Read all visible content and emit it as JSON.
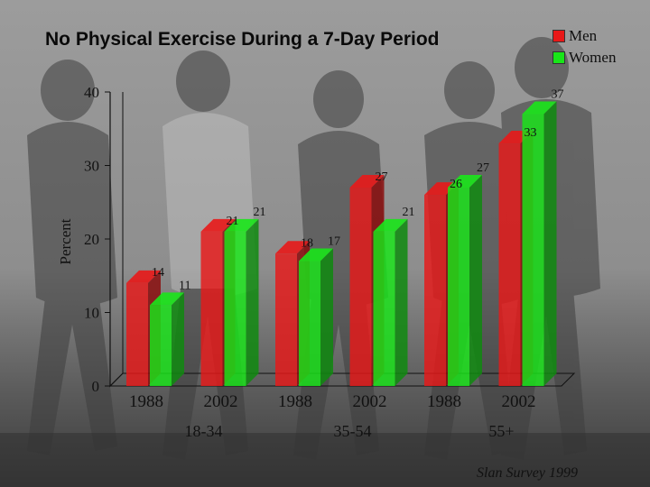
{
  "title": "No Physical Exercise During a 7-Day Period",
  "legend": {
    "men_label": "Men",
    "women_label": "Women",
    "men_color": "#e81818",
    "women_color": "#19e619"
  },
  "source": "Slan Survey 1999",
  "chart_data": {
    "type": "bar",
    "title": "No Physical Exercise During a 7-Day Period",
    "ylabel": "Percent",
    "xlabel": "",
    "ylim": [
      0,
      40
    ],
    "yticks": [
      0,
      10,
      20,
      30,
      40
    ],
    "categories": [
      "1988",
      "2002",
      "1988",
      "2002",
      "1988",
      "2002"
    ],
    "groups": [
      "18-34",
      "35-54",
      "55+"
    ],
    "series": [
      {
        "name": "Men",
        "color": "#e81818",
        "values": [
          14,
          21,
          18,
          27,
          26,
          33
        ]
      },
      {
        "name": "Women",
        "color": "#19e619",
        "values": [
          11,
          21,
          17,
          21,
          27,
          37
        ]
      }
    ],
    "legend_position": "top-right",
    "grid": false
  }
}
